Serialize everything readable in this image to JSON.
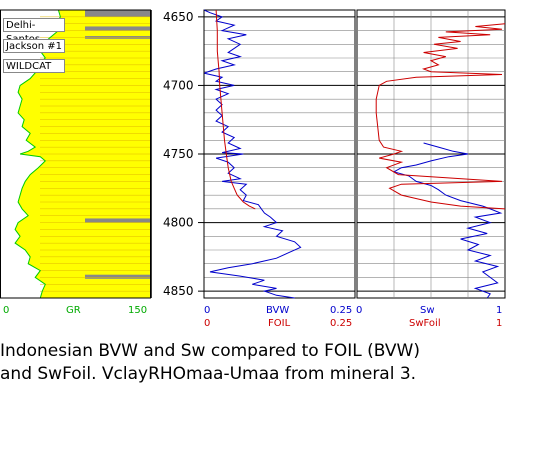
{
  "header": {
    "well_names": [
      "Delhi-Santos",
      "Jackson #1",
      "WILDCAT"
    ]
  },
  "caption": {
    "line1": "Indonesian BVW and Sw compared to FOIL (BVW)",
    "line2": "and SwFoil.  VclayRHOmaa-Umaa from mineral 3."
  },
  "scales": {
    "gr": {
      "min": "0",
      "label": "GR",
      "max": "150",
      "color": "#00bb00"
    },
    "bvw": {
      "min": "0",
      "label": "BVW",
      "max": "0.25",
      "color": "#0000cc"
    },
    "foil": {
      "min": "0",
      "label": "FOIL",
      "max": "0.25",
      "color": "#cc0000"
    },
    "sw": {
      "min": "0",
      "label": "Sw",
      "max": "1",
      "color": "#0000cc"
    },
    "swfoil": {
      "min": "0",
      "label": "SwFoil",
      "max": "1",
      "color": "#cc0000"
    }
  },
  "colors": {
    "gr_fill_sand": "#ffff00",
    "gr_fill_shale": "#ffcc00",
    "gr_fill_grey": "#888888",
    "gr_curve": "#00cc00",
    "bvw_curve": "#0000cc",
    "foil_curve": "#cc0000"
  },
  "chart_data": {
    "type": "line",
    "depth_axis": {
      "ticks": [
        4650,
        4700,
        4750,
        4800,
        4850
      ],
      "range": [
        4645,
        4855
      ]
    },
    "series": [
      {
        "name": "GR",
        "track": 1,
        "x_range": [
          0,
          150
        ],
        "points": [
          [
            4645,
            58
          ],
          [
            4650,
            60
          ],
          [
            4655,
            55
          ],
          [
            4660,
            58
          ],
          [
            4665,
            50
          ],
          [
            4670,
            42
          ],
          [
            4675,
            40
          ],
          [
            4680,
            45
          ],
          [
            4685,
            38
          ],
          [
            4690,
            36
          ],
          [
            4695,
            30
          ],
          [
            4700,
            20
          ],
          [
            4705,
            18
          ],
          [
            4710,
            22
          ],
          [
            4715,
            20
          ],
          [
            4720,
            18
          ],
          [
            4725,
            24
          ],
          [
            4730,
            22
          ],
          [
            4735,
            30
          ],
          [
            4740,
            26
          ],
          [
            4745,
            35
          ],
          [
            4748,
            28
          ],
          [
            4750,
            20
          ],
          [
            4752,
            40
          ],
          [
            4755,
            45
          ],
          [
            4760,
            38
          ],
          [
            4765,
            30
          ],
          [
            4770,
            25
          ],
          [
            4775,
            22
          ],
          [
            4780,
            20
          ],
          [
            4785,
            18
          ],
          [
            4790,
            22
          ],
          [
            4795,
            28
          ],
          [
            4800,
            18
          ],
          [
            4805,
            15
          ],
          [
            4810,
            20
          ],
          [
            4815,
            15
          ],
          [
            4820,
            25
          ],
          [
            4825,
            30
          ],
          [
            4830,
            28
          ],
          [
            4835,
            40
          ],
          [
            4840,
            35
          ],
          [
            4845,
            45
          ],
          [
            4850,
            42
          ],
          [
            4855,
            40
          ]
        ]
      },
      {
        "name": "BVW",
        "track": 2,
        "x_range": [
          0,
          0.25
        ],
        "points": [
          [
            4645,
            0.0
          ],
          [
            4647,
            0.01
          ],
          [
            4650,
            0.03
          ],
          [
            4653,
            0.02
          ],
          [
            4656,
            0.05
          ],
          [
            4660,
            0.03
          ],
          [
            4663,
            0.07
          ],
          [
            4666,
            0.04
          ],
          [
            4670,
            0.06
          ],
          [
            4673,
            0.05
          ],
          [
            4676,
            0.04
          ],
          [
            4679,
            0.06
          ],
          [
            4682,
            0.03
          ],
          [
            4685,
            0.05
          ],
          [
            4688,
            0.02
          ],
          [
            4691,
            0.0
          ],
          [
            4694,
            0.03
          ],
          [
            4697,
            0.02
          ],
          [
            4700,
            0.05
          ],
          [
            4703,
            0.02
          ],
          [
            4706,
            0.04
          ],
          [
            4710,
            0.02
          ],
          [
            4714,
            0.03
          ],
          [
            4718,
            0.02
          ],
          [
            4722,
            0.03
          ],
          [
            4726,
            0.02
          ],
          [
            4730,
            0.04
          ],
          [
            4734,
            0.03
          ],
          [
            4738,
            0.05
          ],
          [
            4742,
            0.04
          ],
          [
            4746,
            0.06
          ],
          [
            4749,
            0.03
          ],
          [
            4750,
            0.065
          ],
          [
            4753,
            0.02
          ],
          [
            4756,
            0.04
          ],
          [
            4760,
            0.05
          ],
          [
            4764,
            0.04
          ],
          [
            4768,
            0.06
          ],
          [
            4770,
            0.03
          ],
          [
            4772,
            0.07
          ],
          [
            4776,
            0.06
          ],
          [
            4780,
            0.07
          ],
          [
            4784,
            0.065
          ],
          [
            4787,
            0.09
          ],
          [
            4790,
            0.095
          ],
          [
            4793,
            0.1
          ],
          [
            4796,
            0.11
          ],
          [
            4800,
            0.12
          ],
          [
            4803,
            0.1
          ],
          [
            4806,
            0.13
          ],
          [
            4810,
            0.12
          ],
          [
            4814,
            0.15
          ],
          [
            4818,
            0.16
          ],
          [
            4822,
            0.14
          ],
          [
            4826,
            0.12
          ],
          [
            4830,
            0.08
          ],
          [
            4833,
            0.04
          ],
          [
            4836,
            0.01
          ],
          [
            4839,
            0.06
          ],
          [
            4842,
            0.1
          ],
          [
            4845,
            0.08
          ],
          [
            4848,
            0.12
          ],
          [
            4850,
            0.1
          ],
          [
            4853,
            0.12
          ],
          [
            4855,
            0.15
          ]
        ]
      },
      {
        "name": "FOIL",
        "track": 2,
        "x_range": [
          0,
          0.25
        ],
        "points": [
          [
            4645,
            0.02
          ],
          [
            4660,
            0.022
          ],
          [
            4675,
            0.022
          ],
          [
            4685,
            0.024
          ],
          [
            4690,
            0.025
          ],
          [
            4700,
            0.026
          ],
          [
            4710,
            0.028
          ],
          [
            4720,
            0.03
          ],
          [
            4730,
            0.032
          ],
          [
            4740,
            0.034
          ],
          [
            4750,
            0.037
          ],
          [
            4760,
            0.04
          ],
          [
            4770,
            0.045
          ],
          [
            4775,
            0.05
          ],
          [
            4780,
            0.055
          ],
          [
            4785,
            0.065
          ],
          [
            4788,
            0.075
          ],
          [
            4790,
            0.085
          ]
        ]
      },
      {
        "name": "Sw",
        "track": 3,
        "x_range": [
          0,
          1
        ],
        "points": [
          [
            4742,
            0.45
          ],
          [
            4745,
            0.55
          ],
          [
            4748,
            0.65
          ],
          [
            4750,
            0.75
          ],
          [
            4752,
            0.62
          ],
          [
            4755,
            0.5
          ],
          [
            4758,
            0.4
          ],
          [
            4760,
            0.3
          ],
          [
            4763,
            0.25
          ],
          [
            4766,
            0.35
          ],
          [
            4770,
            0.4
          ],
          [
            4773,
            0.5
          ],
          [
            4776,
            0.55
          ],
          [
            4780,
            0.6
          ],
          [
            4784,
            0.7
          ],
          [
            4788,
            0.85
          ],
          [
            4790,
            0.9
          ],
          [
            4793,
            0.97
          ],
          [
            4796,
            0.8
          ],
          [
            4800,
            0.9
          ],
          [
            4804,
            0.75
          ],
          [
            4808,
            0.88
          ],
          [
            4812,
            0.7
          ],
          [
            4816,
            0.82
          ],
          [
            4820,
            0.75
          ],
          [
            4824,
            0.9
          ],
          [
            4828,
            0.8
          ],
          [
            4832,
            0.95
          ],
          [
            4836,
            0.85
          ],
          [
            4840,
            0.9
          ],
          [
            4844,
            0.95
          ],
          [
            4848,
            0.8
          ],
          [
            4852,
            0.9
          ],
          [
            4855,
            0.88
          ]
        ]
      },
      {
        "name": "SwFoil",
        "track": 3,
        "x_range": [
          0,
          1
        ],
        "points": [
          [
            4655,
            1.0
          ],
          [
            4657,
            0.8
          ],
          [
            4659,
            0.98
          ],
          [
            4661,
            0.6
          ],
          [
            4663,
            0.9
          ],
          [
            4665,
            0.55
          ],
          [
            4668,
            0.7
          ],
          [
            4670,
            0.52
          ],
          [
            4673,
            0.68
          ],
          [
            4676,
            0.45
          ],
          [
            4679,
            0.6
          ],
          [
            4682,
            0.5
          ],
          [
            4685,
            0.55
          ],
          [
            4688,
            0.45
          ],
          [
            4690,
            0.5
          ],
          [
            4692,
            0.98
          ],
          [
            4694,
            0.4
          ],
          [
            4697,
            0.2
          ],
          [
            4700,
            0.15
          ],
          [
            4705,
            0.14
          ],
          [
            4710,
            0.13
          ],
          [
            4720,
            0.13
          ],
          [
            4730,
            0.14
          ],
          [
            4740,
            0.15
          ],
          [
            4745,
            0.18
          ],
          [
            4748,
            0.3
          ],
          [
            4750,
            0.25
          ],
          [
            4753,
            0.15
          ],
          [
            4756,
            0.3
          ],
          [
            4760,
            0.2
          ],
          [
            4765,
            0.28
          ],
          [
            4770,
            0.98
          ],
          [
            4772,
            0.3
          ],
          [
            4775,
            0.22
          ],
          [
            4780,
            0.3
          ],
          [
            4785,
            0.5
          ],
          [
            4788,
            0.7
          ],
          [
            4790,
            1.0
          ]
        ]
      }
    ]
  }
}
